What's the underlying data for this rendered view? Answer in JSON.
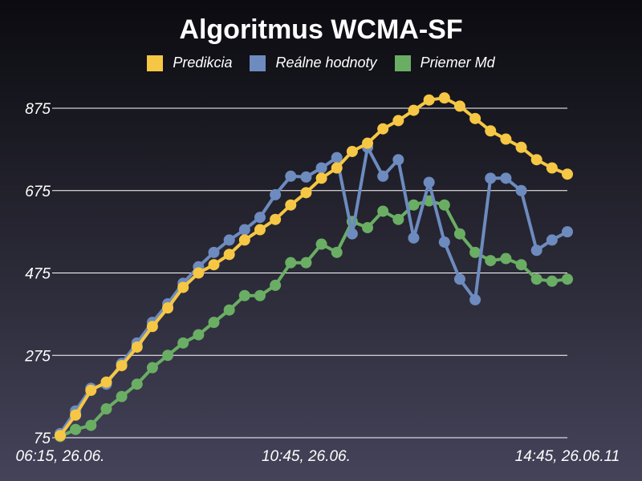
{
  "chart_data": {
    "type": "line",
    "title": "Algoritmus WCMA-SF",
    "ylim": [
      75,
      875
    ],
    "yticks": [
      75,
      275,
      475,
      675,
      875
    ],
    "xtick_labels": [
      "06:15, 26.06.",
      "10:45, 26.06.",
      "14:45, 26.06.11"
    ],
    "xtick_index": [
      0,
      16,
      33
    ],
    "grid": true,
    "legend_position": "top-center",
    "series": [
      {
        "name": "Predikcia",
        "color": "#f6c744",
        "values": [
          80,
          130,
          190,
          210,
          250,
          295,
          345,
          390,
          440,
          475,
          495,
          520,
          555,
          580,
          605,
          640,
          670,
          705,
          730,
          770,
          790,
          825,
          845,
          870,
          895,
          900,
          880,
          850,
          820,
          800,
          780,
          750,
          730,
          715
        ]
      },
      {
        "name": "Reálne hodnoty",
        "color": "#6d8bbe",
        "values": [
          85,
          140,
          195,
          205,
          255,
          305,
          355,
          400,
          450,
          490,
          525,
          555,
          580,
          610,
          665,
          710,
          708,
          730,
          755,
          570,
          780,
          710,
          750,
          560,
          695,
          550,
          460,
          410,
          705,
          705,
          675,
          530,
          555,
          575
        ]
      },
      {
        "name": "Priemer Md",
        "color": "#6aae64",
        "values": [
          78,
          95,
          105,
          145,
          175,
          205,
          245,
          275,
          305,
          325,
          355,
          385,
          420,
          420,
          445,
          500,
          500,
          545,
          525,
          600,
          585,
          625,
          605,
          640,
          650,
          640,
          570,
          525,
          505,
          510,
          495,
          460,
          455,
          460
        ]
      }
    ]
  }
}
